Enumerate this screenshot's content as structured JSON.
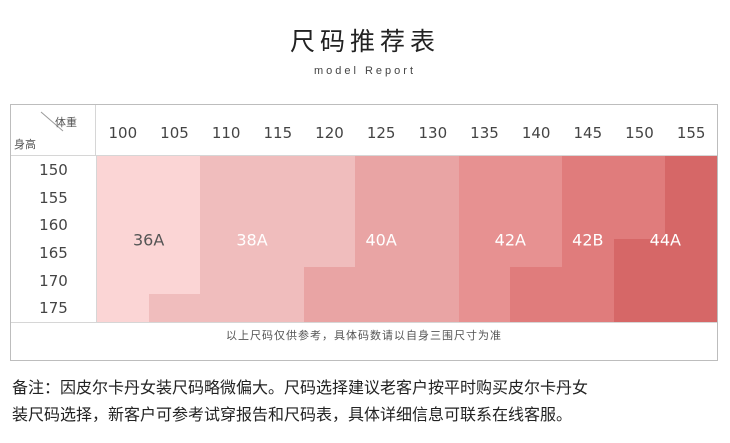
{
  "title": "尺码推荐表",
  "subtitle": "model Report",
  "chart_data": {
    "type": "table",
    "corner": {
      "weight_label": "体重",
      "height_label": "身高"
    },
    "weights": [
      "100",
      "105",
      "110",
      "115",
      "120",
      "125",
      "130",
      "135",
      "140",
      "145",
      "150",
      "155"
    ],
    "heights": [
      "150",
      "155",
      "160",
      "165",
      "170",
      "175"
    ],
    "sizes": [
      {
        "name": "36A",
        "color": "#fbd5d5",
        "text_color": "#555555"
      },
      {
        "name": "38A",
        "color": "#f0bdbd",
        "text_color": "#ffffff"
      },
      {
        "name": "40A",
        "color": "#e9a4a4",
        "text_color": "#ffffff"
      },
      {
        "name": "42A",
        "color": "#e79191",
        "text_color": "#ffffff"
      },
      {
        "name": "42B",
        "color": "#e07c7c",
        "text_color": "#ffffff"
      },
      {
        "name": "44A",
        "color": "#d66767",
        "text_color": "#ffffff"
      }
    ],
    "size_matrix": [
      [
        0,
        0,
        1,
        1,
        1,
        2,
        2,
        3,
        3,
        4,
        4,
        5
      ],
      [
        0,
        0,
        1,
        1,
        1,
        2,
        2,
        3,
        3,
        4,
        4,
        5
      ],
      [
        0,
        0,
        1,
        1,
        1,
        2,
        2,
        3,
        3,
        4,
        4,
        5
      ],
      [
        0,
        0,
        1,
        1,
        1,
        2,
        2,
        3,
        3,
        4,
        5,
        5
      ],
      [
        0,
        0,
        1,
        1,
        2,
        2,
        2,
        3,
        4,
        4,
        5,
        5
      ],
      [
        0,
        1,
        1,
        1,
        2,
        2,
        2,
        3,
        4,
        4,
        5,
        5
      ]
    ]
  },
  "note": "以上尺码仅供参考，具体码数请以自身三围尺寸为准",
  "remark_line1": "备注：因皮尔卡丹女装尺码略微偏大。尺码选择建议老客户按平时购买皮尔卡丹女",
  "remark_line2": "装尺码选择，新客户可参考试穿报告和尺码表，具体详细信息可联系在线客服。"
}
